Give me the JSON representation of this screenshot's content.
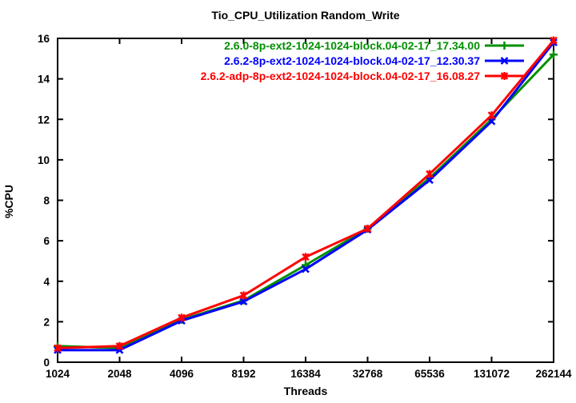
{
  "chart_data": {
    "type": "line",
    "title": "Tio_CPU_Utilization Random_Write",
    "xlabel": "Threads",
    "ylabel": "%CPU",
    "x_scale": "log2",
    "x_labels": [
      "1024",
      "2048",
      "4096",
      "8192",
      "16384",
      "32768",
      "65536",
      "131072",
      "262144"
    ],
    "ylim": [
      0,
      16
    ],
    "y_ticks": [
      0,
      2,
      4,
      6,
      8,
      10,
      12,
      14,
      16
    ],
    "grid": false,
    "legend_position": "top-right-inside",
    "axis_color": "#000000",
    "background_color": "#ffffff",
    "series": [
      {
        "name": "2.6.0-8p-ext2-1024-1024-block.04-02-17_17.34.00",
        "color": "#009000",
        "marker": "plus",
        "values": [
          0.8,
          0.7,
          2.1,
          3.05,
          4.8,
          6.6,
          9.1,
          12.0,
          15.2
        ]
      },
      {
        "name": "2.6.2-8p-ext2-1024-1024-block.04-02-17_12.30.37",
        "color": "#0000ff",
        "marker": "cross",
        "values": [
          0.6,
          0.6,
          2.05,
          3.0,
          4.6,
          6.55,
          9.0,
          11.9,
          15.8
        ]
      },
      {
        "name": "2.6.2-adp-8p-ext2-1024-1024-block.04-02-17_16.08.27",
        "color": "#ff0000",
        "marker": "asterisk",
        "values": [
          0.7,
          0.8,
          2.2,
          3.3,
          5.2,
          6.6,
          9.3,
          12.2,
          15.9
        ]
      }
    ]
  }
}
